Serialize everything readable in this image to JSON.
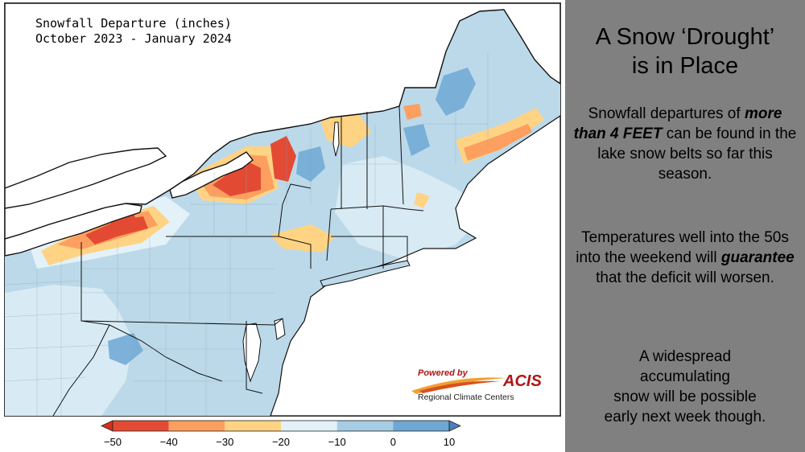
{
  "map": {
    "title_line1": "Snowfall Departure (inches)",
    "title_line2": "October 2023 - January 2024",
    "region": "Northeast United States",
    "logo": {
      "powered_by": "Powered by",
      "name": "ACIS",
      "subtitle": "Regional Climate Centers"
    },
    "colors": {
      "land_base": "#bcd9ea",
      "water": "#ffffff",
      "borders": "#111111",
      "county_lines": "#8aa8b8"
    }
  },
  "legend": {
    "ticks": [
      "−50",
      "−40",
      "−30",
      "−20",
      "−10",
      "0",
      "10"
    ],
    "bins": [
      {
        "from": -50,
        "to": -40,
        "color": "#e34a33"
      },
      {
        "from": -40,
        "to": -30,
        "color": "#fc9f5f"
      },
      {
        "from": -30,
        "to": -20,
        "color": "#fed384"
      },
      {
        "from": -20,
        "to": -10,
        "color": "#e3f2f9"
      },
      {
        "from": -10,
        "to": 0,
        "color": "#a6cde3"
      },
      {
        "from": 0,
        "to": 10,
        "color": "#6ea7d3"
      }
    ],
    "under_color": "#d7301f",
    "over_color": "#4a7fbd"
  },
  "side": {
    "title_line1": "A Snow ‘Drought’",
    "title_line2": "is in Place",
    "p1": {
      "pre": "Snowfall departures of",
      "emph": "more than 4 FEET",
      "post": "can be found in the lake snow belts so far this season."
    },
    "p2": {
      "pre": "Temperatures well into the 50s into the weekend will",
      "emph": "guarantee",
      "post": "that the deficit will worsen."
    },
    "p3": {
      "line1": "A widespread",
      "line2": "accumulating",
      "line3": "snow will be possible",
      "line4": "early next week though."
    }
  }
}
